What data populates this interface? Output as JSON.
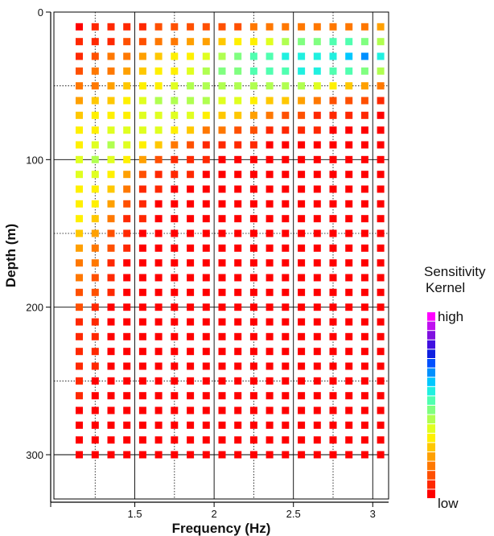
{
  "chart_data": {
    "type": "heatmap",
    "xlabel": "Frequency (Hz)",
    "ylabel": "Depth (m)",
    "xlim": [
      0.99,
      3.1
    ],
    "ylim": [
      0,
      330
    ],
    "y_inverted": true,
    "x_major_ticks": [
      1.5,
      2,
      2.5,
      3
    ],
    "x_major_tick_labels": [
      "1.5",
      "2",
      "2.5",
      "3"
    ],
    "x_minor_ticks": [
      1.25,
      1.75,
      2.25,
      2.75
    ],
    "y_major_ticks": [
      0,
      100,
      200,
      300
    ],
    "y_major_tick_labels": [
      "0",
      "100",
      "200",
      "300"
    ],
    "y_minor_ticks": [
      50,
      150,
      250
    ],
    "grid": true,
    "x": [
      1.15,
      1.25,
      1.35,
      1.45,
      1.55,
      1.65,
      1.75,
      1.85,
      1.95,
      2.05,
      2.15,
      2.25,
      2.35,
      2.45,
      2.55,
      2.65,
      2.75,
      2.85,
      2.95,
      3.05
    ],
    "depths": [
      10,
      20,
      30,
      40,
      50,
      60,
      70,
      80,
      90,
      100,
      110,
      120,
      130,
      140,
      150,
      160,
      170,
      180,
      190,
      200,
      210,
      220,
      230,
      240,
      250,
      260,
      270,
      280,
      290,
      300
    ],
    "value_scale": "normalized sensitivity 0 (low) to 1 (high)",
    "values": [
      [
        0.02,
        0.03,
        0.04,
        0.05,
        0.07,
        0.08,
        0.09,
        0.1,
        0.11,
        0.12,
        0.13,
        0.14,
        0.15,
        0.16,
        0.16,
        0.17,
        0.17,
        0.18,
        0.18,
        0.2
      ],
      [
        0.03,
        0.05,
        0.07,
        0.09,
        0.12,
        0.14,
        0.17,
        0.2,
        0.22,
        0.26,
        0.3,
        0.34,
        0.38,
        0.42,
        0.46,
        0.48,
        0.5,
        0.5,
        0.47,
        0.4
      ],
      [
        0.06,
        0.1,
        0.14,
        0.18,
        0.22,
        0.26,
        0.3,
        0.34,
        0.38,
        0.42,
        0.46,
        0.5,
        0.54,
        0.58,
        0.6,
        0.6,
        0.58,
        0.62,
        0.66,
        0.6
      ],
      [
        0.1,
        0.14,
        0.18,
        0.22,
        0.26,
        0.3,
        0.34,
        0.38,
        0.42,
        0.46,
        0.48,
        0.5,
        0.52,
        0.54,
        0.56,
        0.56,
        0.55,
        0.52,
        0.48,
        0.42
      ],
      [
        0.14,
        0.18,
        0.22,
        0.26,
        0.3,
        0.34,
        0.38,
        0.42,
        0.44,
        0.44,
        0.44,
        0.44,
        0.43,
        0.42,
        0.4,
        0.36,
        0.32,
        0.26,
        0.22,
        0.18
      ],
      [
        0.2,
        0.24,
        0.28,
        0.32,
        0.36,
        0.4,
        0.42,
        0.42,
        0.4,
        0.38,
        0.35,
        0.32,
        0.28,
        0.24,
        0.2,
        0.16,
        0.13,
        0.1,
        0.08,
        0.06
      ],
      [
        0.26,
        0.3,
        0.32,
        0.34,
        0.36,
        0.38,
        0.38,
        0.36,
        0.32,
        0.28,
        0.24,
        0.2,
        0.16,
        0.12,
        0.09,
        0.07,
        0.05,
        0.04,
        0.03,
        0.02
      ],
      [
        0.3,
        0.34,
        0.36,
        0.38,
        0.38,
        0.36,
        0.3,
        0.24,
        0.18,
        0.14,
        0.1,
        0.08,
        0.06,
        0.05,
        0.04,
        0.03,
        0.02,
        0.02,
        0.02,
        0.02
      ],
      [
        0.34,
        0.38,
        0.4,
        0.38,
        0.32,
        0.24,
        0.16,
        0.1,
        0.07,
        0.05,
        0.04,
        0.03,
        0.02,
        0.02,
        0.02,
        0.02,
        0.02,
        0.02,
        0.02,
        0.02
      ],
      [
        0.36,
        0.4,
        0.38,
        0.3,
        0.2,
        0.12,
        0.07,
        0.05,
        0.03,
        0.02,
        0.02,
        0.02,
        0.02,
        0.02,
        0.02,
        0.02,
        0.02,
        0.02,
        0.02,
        0.02
      ],
      [
        0.36,
        0.38,
        0.32,
        0.22,
        0.12,
        0.06,
        0.04,
        0.03,
        0.02,
        0.02,
        0.02,
        0.02,
        0.02,
        0.02,
        0.02,
        0.02,
        0.02,
        0.02,
        0.02,
        0.02
      ],
      [
        0.34,
        0.34,
        0.26,
        0.14,
        0.07,
        0.04,
        0.02,
        0.02,
        0.02,
        0.02,
        0.02,
        0.02,
        0.02,
        0.02,
        0.02,
        0.02,
        0.02,
        0.02,
        0.02,
        0.02
      ],
      [
        0.32,
        0.3,
        0.2,
        0.09,
        0.04,
        0.02,
        0.02,
        0.02,
        0.02,
        0.02,
        0.02,
        0.02,
        0.02,
        0.02,
        0.02,
        0.02,
        0.02,
        0.02,
        0.02,
        0.02
      ],
      [
        0.3,
        0.26,
        0.15,
        0.06,
        0.03,
        0.02,
        0.02,
        0.02,
        0.02,
        0.02,
        0.02,
        0.02,
        0.02,
        0.02,
        0.02,
        0.02,
        0.02,
        0.02,
        0.02,
        0.02
      ],
      [
        0.26,
        0.22,
        0.11,
        0.04,
        0.02,
        0.02,
        0.02,
        0.02,
        0.02,
        0.02,
        0.02,
        0.02,
        0.02,
        0.02,
        0.02,
        0.02,
        0.02,
        0.02,
        0.02,
        0.02
      ],
      [
        0.22,
        0.18,
        0.08,
        0.03,
        0.02,
        0.02,
        0.02,
        0.02,
        0.02,
        0.02,
        0.02,
        0.02,
        0.02,
        0.02,
        0.02,
        0.02,
        0.02,
        0.02,
        0.02,
        0.02
      ],
      [
        0.18,
        0.14,
        0.06,
        0.02,
        0.02,
        0.02,
        0.02,
        0.02,
        0.02,
        0.02,
        0.02,
        0.02,
        0.02,
        0.02,
        0.02,
        0.02,
        0.02,
        0.02,
        0.02,
        0.02
      ],
      [
        0.15,
        0.11,
        0.04,
        0.02,
        0.02,
        0.02,
        0.02,
        0.02,
        0.02,
        0.02,
        0.02,
        0.02,
        0.02,
        0.02,
        0.02,
        0.02,
        0.02,
        0.02,
        0.02,
        0.02
      ],
      [
        0.12,
        0.08,
        0.03,
        0.02,
        0.02,
        0.02,
        0.02,
        0.02,
        0.02,
        0.02,
        0.02,
        0.02,
        0.02,
        0.02,
        0.02,
        0.02,
        0.02,
        0.02,
        0.02,
        0.02
      ],
      [
        0.09,
        0.06,
        0.02,
        0.02,
        0.02,
        0.02,
        0.02,
        0.02,
        0.02,
        0.02,
        0.02,
        0.02,
        0.02,
        0.02,
        0.02,
        0.02,
        0.02,
        0.02,
        0.02,
        0.02
      ],
      [
        0.07,
        0.05,
        0.02,
        0.02,
        0.02,
        0.02,
        0.02,
        0.02,
        0.02,
        0.02,
        0.02,
        0.02,
        0.02,
        0.02,
        0.02,
        0.02,
        0.02,
        0.02,
        0.02,
        0.02
      ],
      [
        0.06,
        0.04,
        0.02,
        0.02,
        0.02,
        0.02,
        0.02,
        0.02,
        0.02,
        0.02,
        0.02,
        0.02,
        0.02,
        0.02,
        0.02,
        0.02,
        0.02,
        0.02,
        0.02,
        0.02
      ],
      [
        0.05,
        0.03,
        0.02,
        0.02,
        0.02,
        0.02,
        0.02,
        0.02,
        0.02,
        0.02,
        0.02,
        0.02,
        0.02,
        0.02,
        0.02,
        0.02,
        0.02,
        0.02,
        0.02,
        0.02
      ],
      [
        0.04,
        0.03,
        0.02,
        0.02,
        0.02,
        0.02,
        0.02,
        0.02,
        0.02,
        0.02,
        0.02,
        0.02,
        0.02,
        0.02,
        0.02,
        0.02,
        0.02,
        0.02,
        0.02,
        0.02
      ],
      [
        0.03,
        0.02,
        0.02,
        0.02,
        0.02,
        0.02,
        0.02,
        0.02,
        0.02,
        0.02,
        0.02,
        0.02,
        0.02,
        0.02,
        0.02,
        0.02,
        0.02,
        0.02,
        0.02,
        0.02
      ],
      [
        0.03,
        0.02,
        0.02,
        0.02,
        0.02,
        0.02,
        0.02,
        0.02,
        0.02,
        0.02,
        0.02,
        0.02,
        0.02,
        0.02,
        0.02,
        0.02,
        0.02,
        0.02,
        0.02,
        0.02
      ],
      [
        0.02,
        0.02,
        0.02,
        0.02,
        0.02,
        0.02,
        0.02,
        0.02,
        0.02,
        0.02,
        0.02,
        0.02,
        0.02,
        0.02,
        0.02,
        0.02,
        0.02,
        0.02,
        0.02,
        0.02
      ],
      [
        0.02,
        0.02,
        0.02,
        0.02,
        0.02,
        0.02,
        0.02,
        0.02,
        0.02,
        0.02,
        0.02,
        0.02,
        0.02,
        0.02,
        0.02,
        0.02,
        0.02,
        0.02,
        0.02,
        0.02
      ],
      [
        0.02,
        0.02,
        0.02,
        0.02,
        0.02,
        0.02,
        0.02,
        0.02,
        0.02,
        0.02,
        0.02,
        0.02,
        0.02,
        0.02,
        0.02,
        0.02,
        0.02,
        0.02,
        0.02,
        0.02
      ],
      [
        0.02,
        0.02,
        0.02,
        0.02,
        0.02,
        0.02,
        0.02,
        0.02,
        0.02,
        0.02,
        0.02,
        0.02,
        0.02,
        0.02,
        0.02,
        0.02,
        0.02,
        0.02,
        0.02,
        0.02
      ]
    ],
    "colorbar": {
      "title_line1": "Sensitivity",
      "title_line2": "Kernel",
      "high_label": "high",
      "low_label": "low",
      "colors": [
        "#ff0000",
        "#ff2800",
        "#ff5000",
        "#ff7800",
        "#ffa000",
        "#ffc800",
        "#fff000",
        "#e0ff20",
        "#b0ff50",
        "#80ff80",
        "#50ffb0",
        "#20f0e0",
        "#00c8ff",
        "#0090ff",
        "#0050ff",
        "#1020e0",
        "#4010e0",
        "#8010e0",
        "#c010f0",
        "#ff00ff"
      ]
    }
  }
}
